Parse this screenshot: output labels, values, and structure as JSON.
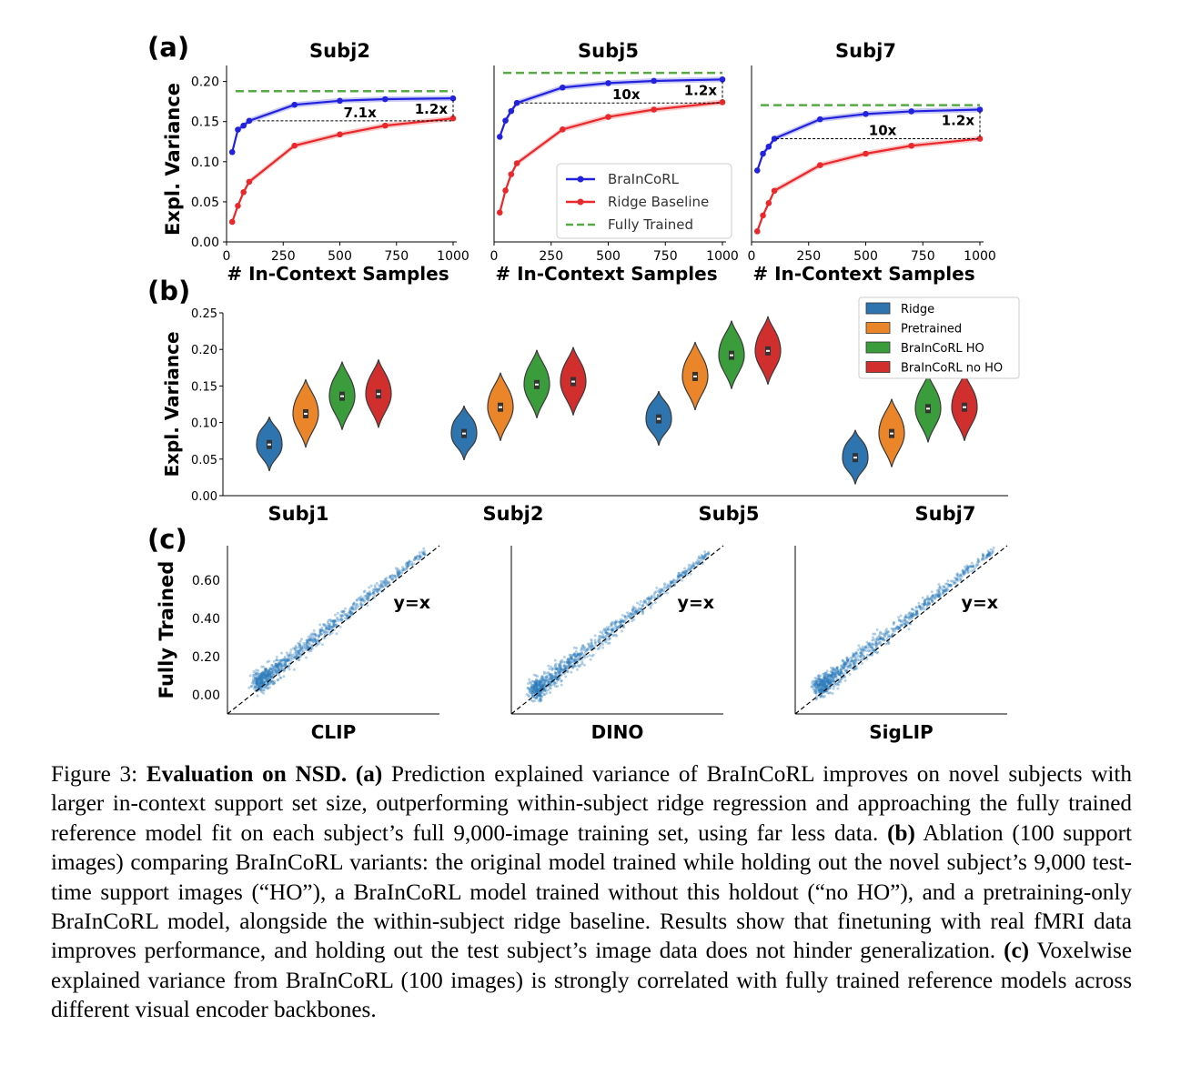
{
  "figure": {
    "panel_a": {
      "label": "(a)",
      "ylabel": "Expl. Variance",
      "xlabel": "# In-Context Samples",
      "legend": [
        "BraInCoRL",
        "Ridge Baseline",
        "Fully Trained"
      ],
      "colors": {
        "braincorl": "#2222dd",
        "ridge": "#e8282a",
        "fully": "#55aa44"
      }
    },
    "panel_b": {
      "label": "(b)",
      "ylabel": "Expl. Variance",
      "legend": [
        "Ridge",
        "Pretrained",
        "BraInCoRL HO",
        "BraInCoRL no HO"
      ],
      "colors": [
        "#2e75b0",
        "#ea852a",
        "#3a9c3a",
        "#d12e2e"
      ]
    },
    "panel_c": {
      "label": "(c)",
      "ylabel": "Fully Trained",
      "identity_label": "y=x",
      "color": "#2b7bba"
    }
  },
  "chart_data": [
    {
      "type": "line",
      "title": "Subj2",
      "xlabel": "# In-Context Samples",
      "ylabel": "Expl. Variance",
      "xlim": [
        0,
        1000
      ],
      "ylim": [
        0,
        0.22
      ],
      "yticks": [
        0.0,
        0.05,
        0.1,
        0.15,
        0.2
      ],
      "xticks": [
        0,
        250,
        500,
        750,
        1000
      ],
      "x": [
        25,
        50,
        75,
        100,
        300,
        500,
        700,
        1000
      ],
      "series": [
        {
          "name": "BraInCoRL",
          "values": [
            0.112,
            0.14,
            0.145,
            0.151,
            0.171,
            0.176,
            0.178,
            0.179
          ]
        },
        {
          "name": "Ridge Baseline",
          "values": [
            0.025,
            0.045,
            0.062,
            0.075,
            0.12,
            0.134,
            0.145,
            0.154
          ]
        }
      ],
      "fully_trained": 0.188,
      "annotations": [
        "7.1x",
        "1.2x"
      ]
    },
    {
      "type": "line",
      "title": "Subj5",
      "xlabel": "# In-Context Samples",
      "ylabel": "",
      "xlim": [
        0,
        1000
      ],
      "ylim": [
        0,
        0.24
      ],
      "yticks": [],
      "xticks": [
        0,
        250,
        500,
        750,
        1000
      ],
      "x": [
        25,
        50,
        75,
        100,
        300,
        500,
        700,
        1000
      ],
      "series": [
        {
          "name": "BraInCoRL",
          "values": [
            0.143,
            0.165,
            0.178,
            0.189,
            0.21,
            0.216,
            0.219,
            0.221
          ]
        },
        {
          "name": "Ridge Baseline",
          "values": [
            0.04,
            0.07,
            0.092,
            0.107,
            0.153,
            0.17,
            0.18,
            0.19
          ]
        }
      ],
      "fully_trained": 0.23,
      "annotations": [
        "10x",
        "1.2x"
      ]
    },
    {
      "type": "line",
      "title": "Subj7",
      "xlabel": "# In-Context Samples",
      "ylabel": "",
      "xlim": [
        0,
        1000
      ],
      "ylim": [
        0,
        0.2
      ],
      "yticks": [],
      "xticks": [
        0,
        250,
        500,
        750,
        1000
      ],
      "x": [
        25,
        50,
        75,
        100,
        300,
        500,
        700,
        1000
      ],
      "series": [
        {
          "name": "BraInCoRL",
          "values": [
            0.081,
            0.1,
            0.108,
            0.117,
            0.139,
            0.145,
            0.148,
            0.15
          ]
        },
        {
          "name": "Ridge Baseline",
          "values": [
            0.012,
            0.03,
            0.044,
            0.058,
            0.087,
            0.1,
            0.109,
            0.117
          ]
        }
      ],
      "fully_trained": 0.155,
      "annotations": [
        "10x",
        "1.2x"
      ]
    },
    {
      "type": "violin",
      "ylabel": "Expl. Variance",
      "ylim": [
        0,
        0.25
      ],
      "yticks": [
        0.0,
        0.05,
        0.1,
        0.15,
        0.2,
        0.25
      ],
      "categories": [
        "Subj1",
        "Subj2",
        "Subj5",
        "Subj7"
      ],
      "series": [
        {
          "name": "Ridge",
          "values": [
            0.07,
            0.085,
            0.105,
            0.052
          ]
        },
        {
          "name": "Pretrained",
          "values": [
            0.112,
            0.121,
            0.163,
            0.085
          ]
        },
        {
          "name": "BraInCoRL HO",
          "values": [
            0.136,
            0.152,
            0.192,
            0.119
          ]
        },
        {
          "name": "BraInCoRL no HO",
          "values": [
            0.139,
            0.156,
            0.198,
            0.121
          ]
        }
      ]
    },
    {
      "type": "scatter",
      "xlabel": "CLIP",
      "ylabel": "Fully Trained",
      "yticks": [
        0.0,
        0.2,
        0.4,
        0.6
      ],
      "ylim": [
        -0.1,
        0.78
      ],
      "xlim": [
        -0.1,
        0.78
      ],
      "x_range": [
        0.03,
        0.72
      ],
      "y_offset": 0.03,
      "reference_line": "y=x"
    },
    {
      "type": "scatter",
      "xlabel": "DINO",
      "ylabel": "",
      "ylim": [
        -0.1,
        0.78
      ],
      "xlim": [
        -0.1,
        0.78
      ],
      "x_range": [
        0.0,
        0.72
      ],
      "y_offset": 0.02,
      "reference_line": "y=x"
    },
    {
      "type": "scatter",
      "xlabel": "SigLIP",
      "ylabel": "",
      "ylim": [
        -0.1,
        0.78
      ],
      "xlim": [
        -0.1,
        0.78
      ],
      "x_range": [
        0.0,
        0.72
      ],
      "y_offset": 0.035,
      "reference_line": "y=x"
    }
  ],
  "caption": {
    "fig_label": "Figure 3:",
    "title": "Evaluation on NSD.",
    "a_label": "(a)",
    "a_text": "Prediction explained variance of BraInCoRL improves on novel subjects with larger in-context support set size, outperforming within-subject ridge regression and approaching the fully trained reference model fit on each subject’s full 9,000-image training set, using far less data.",
    "b_label": "(b)",
    "b_text": "Ablation (100 support images) comparing BraInCoRL variants: the original model trained while holding out the novel subject’s 9,000 test-time support images (“HO”), a BraInCoRL model trained without this holdout (“no HO”), and a pretraining-only BraInCoRL model, alongside the within-subject ridge baseline. Results show that finetuning with real fMRI data improves performance, and holding out the test subject’s image data does not hinder generalization.",
    "c_label": "(c)",
    "c_text": "Voxelwise explained variance from BraInCoRL (100 images) is strongly correlated with fully trained reference models across different visual encoder backbones."
  }
}
